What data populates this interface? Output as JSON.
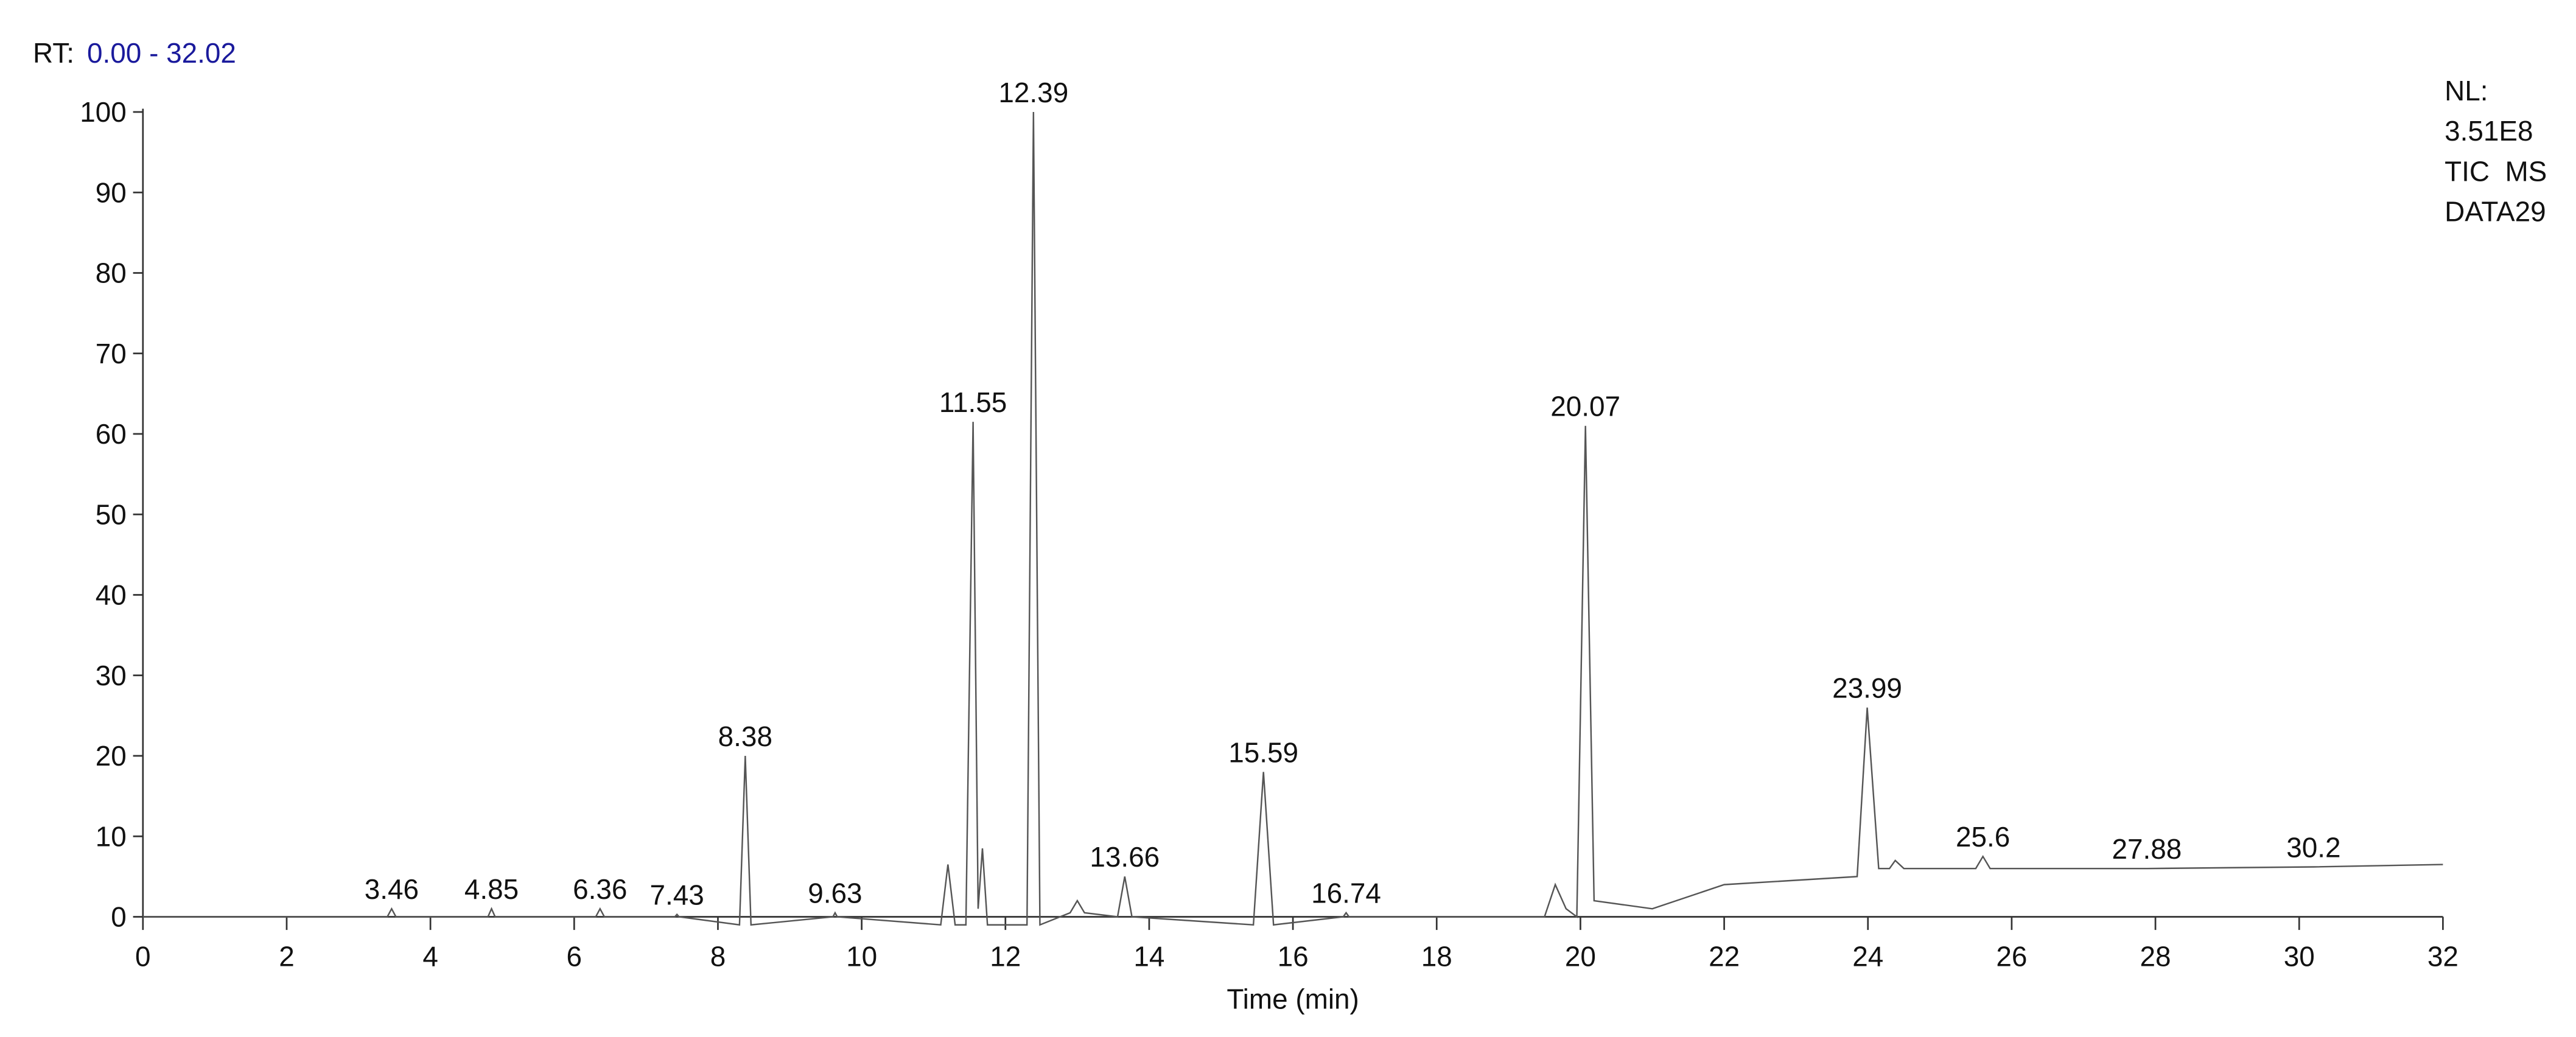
{
  "chart_data": {
    "type": "line",
    "header": {
      "rt_label": "RT:",
      "rt_range": "0.00 - 32.02",
      "rt_range_color": "#1a1a9c"
    },
    "info": [
      "NL:",
      "3.51E8",
      "TIC  MS",
      "DATA29"
    ],
    "xlabel": "Time (min)",
    "xlim": [
      0,
      32
    ],
    "xticks": [
      0,
      2,
      4,
      6,
      8,
      10,
      12,
      14,
      16,
      18,
      20,
      22,
      24,
      26,
      28,
      30,
      32
    ],
    "ylim": [
      0,
      100
    ],
    "yticks": [
      0,
      10,
      20,
      30,
      40,
      50,
      60,
      70,
      80,
      90,
      100
    ],
    "x": [
      0,
      2.6,
      3.4,
      3.46,
      3.52,
      4.8,
      4.85,
      4.9,
      6.3,
      6.36,
      6.42,
      7.4,
      7.43,
      7.46,
      8.3,
      8.38,
      8.46,
      9.6,
      9.63,
      9.66,
      11.1,
      11.2,
      11.3,
      11.45,
      11.55,
      11.62,
      11.68,
      11.75,
      12.3,
      12.39,
      12.48,
      12.9,
      13.0,
      13.1,
      13.56,
      13.66,
      13.76,
      15.45,
      15.59,
      15.73,
      16.7,
      16.74,
      16.78,
      19.5,
      19.65,
      19.8,
      19.95,
      20.07,
      20.19,
      21.0,
      22.0,
      23.85,
      23.99,
      24.15,
      24.3,
      24.38,
      24.5,
      25.5,
      25.6,
      25.7,
      27.88,
      30.2,
      32
    ],
    "series": [
      {
        "color": "#555555",
        "values": [
          0,
          0,
          0,
          1,
          0,
          0,
          1,
          0,
          0,
          1,
          0,
          0,
          0.3,
          0,
          -1,
          20,
          -1,
          0,
          0.5,
          0,
          -1,
          6.5,
          -1,
          -1,
          61.5,
          1,
          8.5,
          -1,
          -1,
          100,
          -1,
          0.5,
          2,
          0.5,
          0,
          5,
          0,
          -1,
          18,
          -1,
          0,
          0.5,
          0,
          0,
          4,
          1,
          0,
          61,
          2,
          1,
          4,
          5,
          26,
          6,
          6,
          7,
          6,
          6,
          7.5,
          6,
          6,
          6.2,
          6.5
        ]
      }
    ],
    "peak_labels": [
      {
        "x": 3.46,
        "y": 1
      },
      {
        "x": 4.85,
        "y": 1
      },
      {
        "x": 6.36,
        "y": 1
      },
      {
        "x": 7.43,
        "y": 0.3
      },
      {
        "x": 8.38,
        "y": 20
      },
      {
        "x": 9.63,
        "y": 0.5
      },
      {
        "x": 11.55,
        "y": 61.5
      },
      {
        "x": 12.39,
        "y": 100
      },
      {
        "x": 13.66,
        "y": 5
      },
      {
        "x": 15.59,
        "y": 18
      },
      {
        "x": 16.74,
        "y": 0.5
      },
      {
        "x": 20.07,
        "y": 61
      },
      {
        "x": 23.99,
        "y": 26
      },
      {
        "x": 25.6,
        "y": 7.5
      },
      {
        "x": 27.88,
        "y": 6
      },
      {
        "x": 30.2,
        "y": 6.2
      }
    ]
  }
}
